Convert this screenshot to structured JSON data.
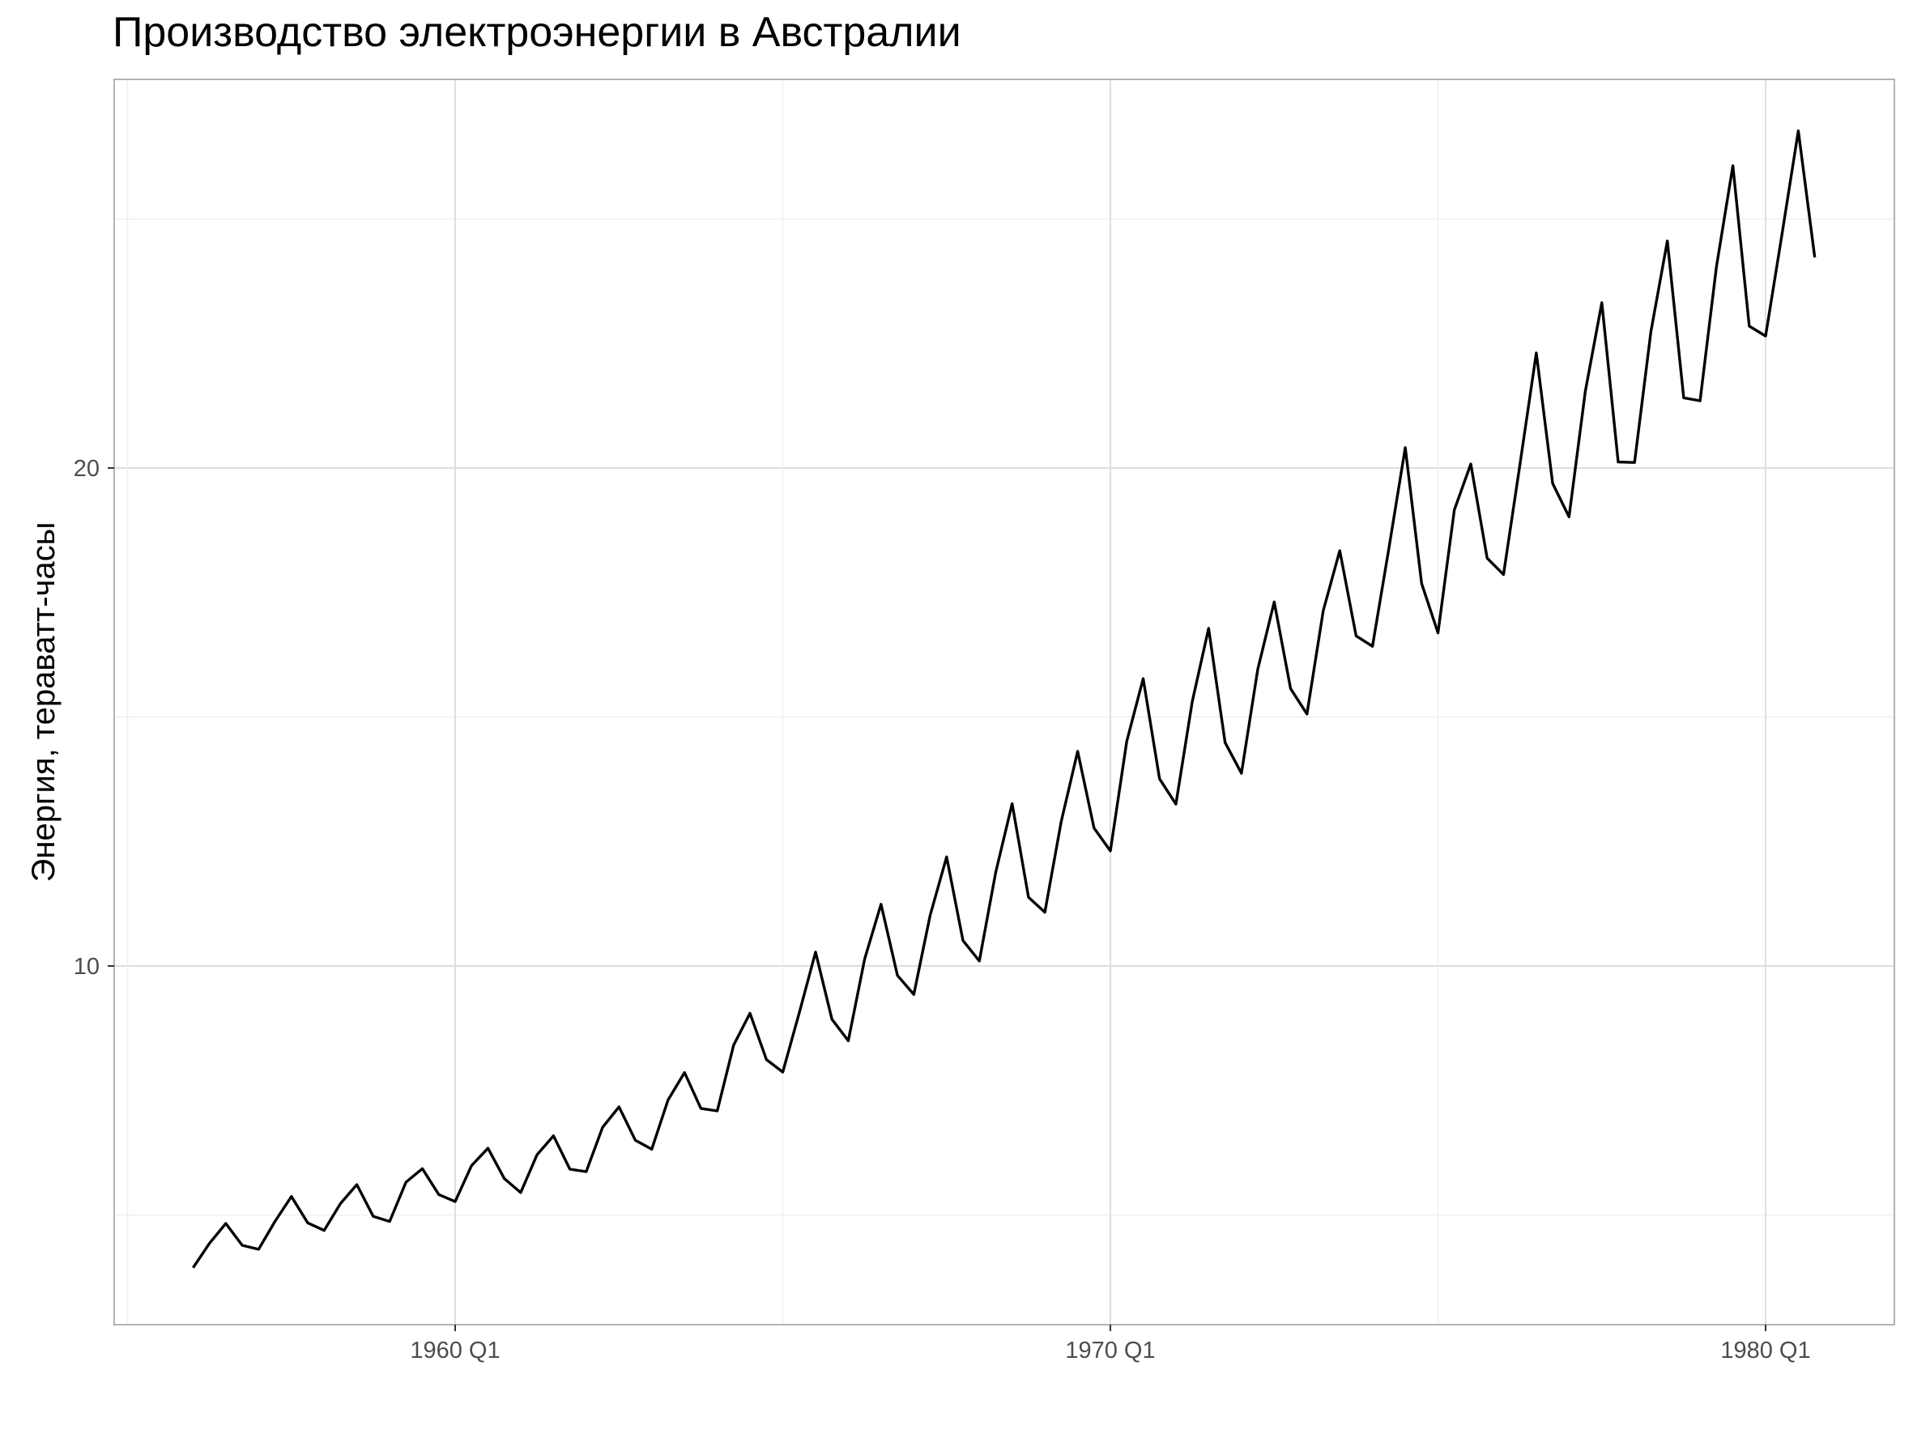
{
  "chart_data": {
    "type": "line",
    "title": "Производство электроэнергии в Австралии",
    "xlabel": "",
    "ylabel": "Энергия, тераватт-часы",
    "x_ticks": [
      "1960 Q1",
      "1970 Q1",
      "1980 Q1"
    ],
    "y_ticks": [
      10,
      20
    ],
    "ylim": [
      2.8,
      27.8
    ],
    "grid": true,
    "start_quarter": "1956 Q1",
    "end_quarter": "1980 Q4",
    "series": [
      {
        "color": "#000000",
        "x": [
          "1956 Q1",
          "1956 Q2",
          "1956 Q3",
          "1956 Q4",
          "1957 Q1",
          "1957 Q2",
          "1957 Q3",
          "1957 Q4",
          "1958 Q1",
          "1958 Q2",
          "1958 Q3",
          "1958 Q4",
          "1959 Q1",
          "1959 Q2",
          "1959 Q3",
          "1959 Q4",
          "1960 Q1",
          "1960 Q2",
          "1960 Q3",
          "1960 Q4",
          "1961 Q1",
          "1961 Q2",
          "1961 Q3",
          "1961 Q4",
          "1962 Q1",
          "1962 Q2",
          "1962 Q3",
          "1962 Q4",
          "1963 Q1",
          "1963 Q2",
          "1963 Q3",
          "1963 Q4",
          "1964 Q1",
          "1964 Q2",
          "1964 Q3",
          "1964 Q4",
          "1965 Q1",
          "1965 Q2",
          "1965 Q3",
          "1965 Q4",
          "1966 Q1",
          "1966 Q2",
          "1966 Q3",
          "1966 Q4",
          "1967 Q1",
          "1967 Q2",
          "1967 Q3",
          "1967 Q4",
          "1968 Q1",
          "1968 Q2",
          "1968 Q3",
          "1968 Q4",
          "1969 Q1",
          "1969 Q2",
          "1969 Q3",
          "1969 Q4",
          "1970 Q1",
          "1970 Q2",
          "1970 Q3",
          "1970 Q4",
          "1971 Q1",
          "1971 Q2",
          "1971 Q3",
          "1971 Q4",
          "1972 Q1",
          "1972 Q2",
          "1972 Q3",
          "1972 Q4",
          "1973 Q1",
          "1973 Q2",
          "1973 Q3",
          "1973 Q4",
          "1974 Q1",
          "1974 Q2",
          "1974 Q3",
          "1974 Q4",
          "1975 Q1",
          "1975 Q2",
          "1975 Q3",
          "1975 Q4",
          "1976 Q1",
          "1976 Q2",
          "1976 Q3",
          "1976 Q4",
          "1977 Q1",
          "1977 Q2",
          "1977 Q3",
          "1977 Q4",
          "1978 Q1",
          "1978 Q2",
          "1978 Q3",
          "1978 Q4",
          "1979 Q1",
          "1979 Q2",
          "1979 Q3",
          "1979 Q4",
          "1980 Q1",
          "1980 Q2",
          "1980 Q3",
          "1980 Q4"
        ],
        "values": [
          3.94,
          4.43,
          4.83,
          4.39,
          4.31,
          4.87,
          5.37,
          4.84,
          4.69,
          5.23,
          5.61,
          4.97,
          4.87,
          5.66,
          5.93,
          5.41,
          5.27,
          5.99,
          6.34,
          5.73,
          5.45,
          6.21,
          6.59,
          5.92,
          5.87,
          6.76,
          7.17,
          6.5,
          6.32,
          7.31,
          7.86,
          7.14,
          7.09,
          8.41,
          9.05,
          8.12,
          7.87,
          9.05,
          10.28,
          8.93,
          8.5,
          10.14,
          11.24,
          9.81,
          9.43,
          11.02,
          12.19,
          10.51,
          10.1,
          11.88,
          13.26,
          11.38,
          11.08,
          12.9,
          14.31,
          12.77,
          12.31,
          14.51,
          15.77,
          13.76,
          13.25,
          15.31,
          16.78,
          14.49,
          13.87,
          15.96,
          17.31,
          15.57,
          15.06,
          17.14,
          18.34,
          16.63,
          16.42,
          18.38,
          20.41,
          17.68,
          16.69,
          19.16,
          20.08,
          18.19,
          17.86,
          20.06,
          22.31,
          19.69,
          19.02,
          21.55,
          23.32,
          20.12,
          20.11,
          22.74,
          24.56,
          21.41,
          21.35,
          24.04,
          26.07,
          22.85,
          22.65,
          24.69,
          26.77,
          24.23
        ]
      }
    ]
  }
}
